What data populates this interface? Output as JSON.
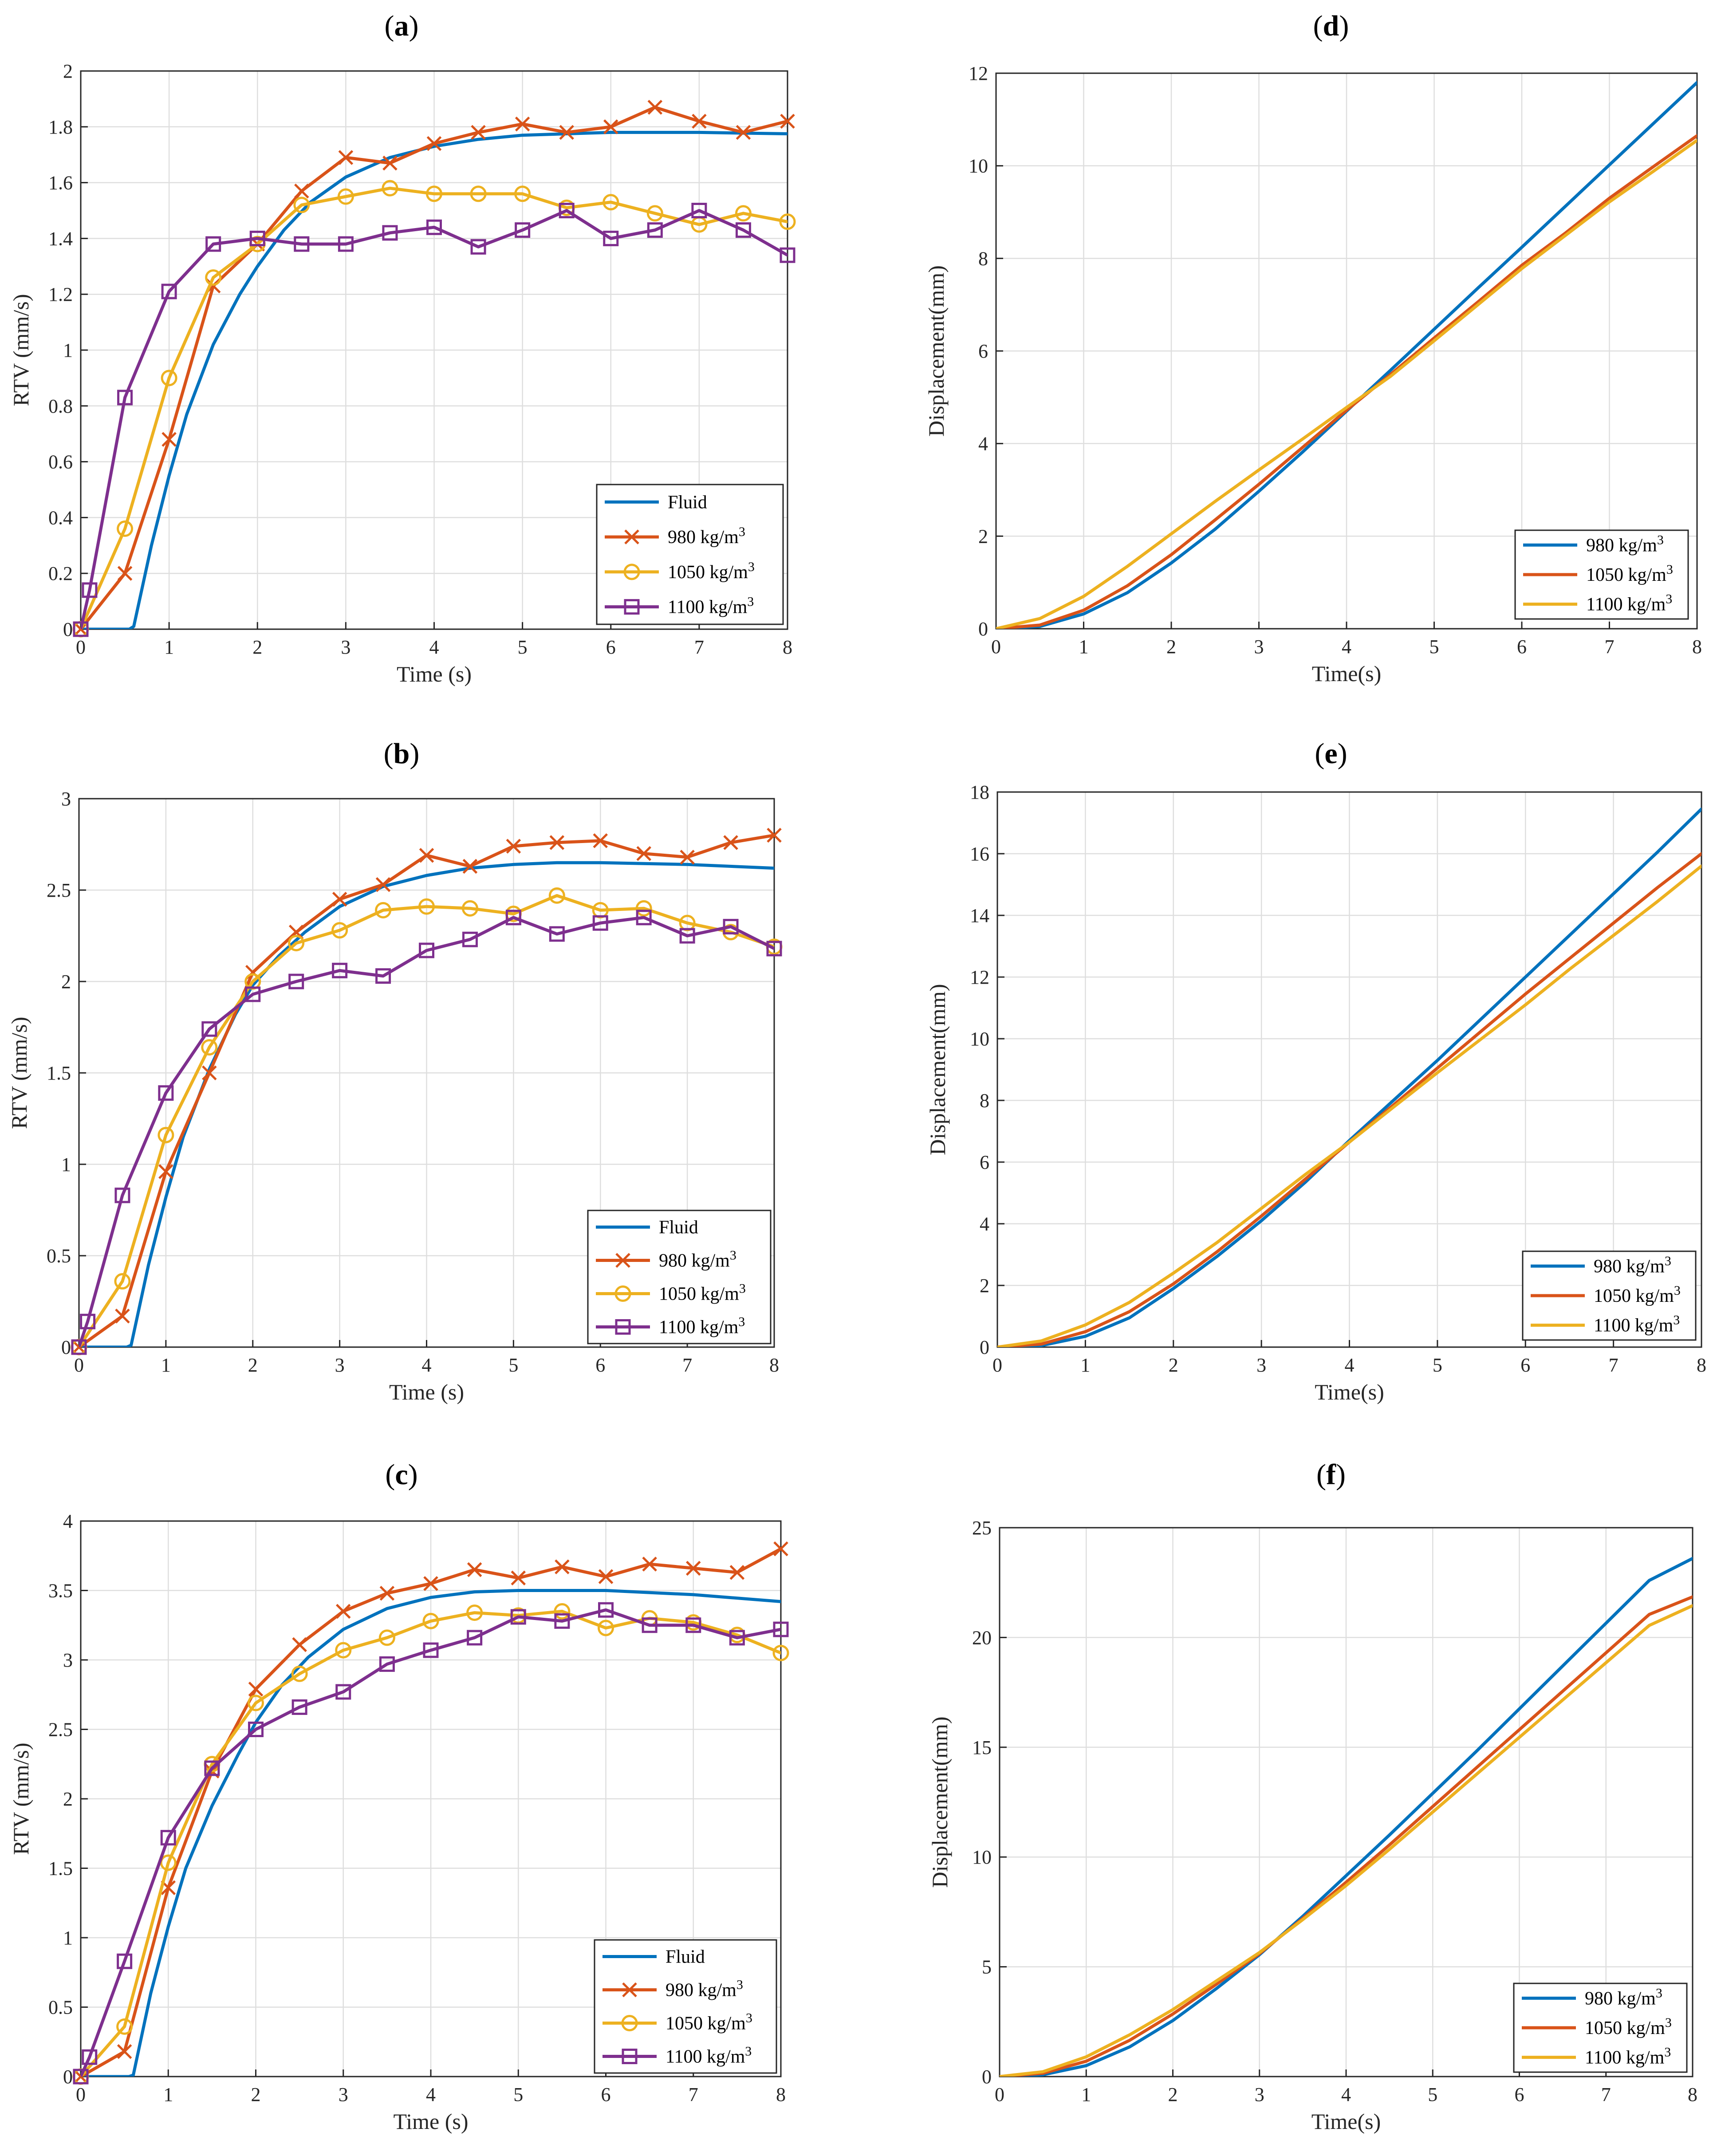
{
  "colors": {
    "fluid": "#0072BD",
    "d980": "#D95319",
    "d1050": "#EDB120",
    "d1100": "#7E2F8E",
    "disp980": "#0072BD",
    "disp1050": "#D95319",
    "disp1100": "#EDB120"
  },
  "chart_data": [
    {
      "id": "a",
      "panel_label": "a",
      "type": "line",
      "title": "",
      "xlabel": "Time (s)",
      "ylabel": "RTV (mm/s)",
      "xlim": [
        0,
        8
      ],
      "ylim": [
        0,
        2
      ],
      "xticks": [
        0,
        1,
        2,
        3,
        4,
        5,
        6,
        7,
        8
      ],
      "yticks": [
        0,
        0.2,
        0.4,
        0.6,
        0.8,
        1,
        1.2,
        1.4,
        1.6,
        1.8,
        2
      ],
      "grid": true,
      "legend_position": "bottom-right",
      "series": [
        {
          "name": "Fluid",
          "color_key": "fluid",
          "marker": "none",
          "x": [
            0,
            0.3,
            0.55,
            0.6,
            0.8,
            1.0,
            1.2,
            1.5,
            1.8,
            2.0,
            2.3,
            2.6,
            3.0,
            3.5,
            4.0,
            4.5,
            5.0,
            5.5,
            6.0,
            7.0,
            8.0
          ],
          "y": [
            0,
            0,
            0,
            0.01,
            0.3,
            0.55,
            0.77,
            1.02,
            1.2,
            1.3,
            1.43,
            1.53,
            1.62,
            1.69,
            1.73,
            1.755,
            1.77,
            1.775,
            1.78,
            1.78,
            1.775
          ]
        },
        {
          "name": "980 kg/m3",
          "color_key": "d980",
          "marker": "x",
          "x": [
            0,
            0.5,
            1,
            1.5,
            2,
            2.5,
            3,
            3.5,
            4,
            4.5,
            5,
            5.5,
            6,
            6.5,
            7,
            7.5,
            8
          ],
          "y": [
            0,
            0.2,
            0.68,
            1.23,
            1.38,
            1.57,
            1.69,
            1.67,
            1.74,
            1.78,
            1.81,
            1.78,
            1.8,
            1.87,
            1.82,
            1.78,
            1.82
          ]
        },
        {
          "name": "1050 kg/m3",
          "color_key": "d1050",
          "marker": "o",
          "x": [
            0,
            0.5,
            1,
            1.5,
            2,
            2.5,
            3,
            3.5,
            4,
            4.5,
            5,
            5.5,
            6,
            6.5,
            7,
            7.5,
            8
          ],
          "y": [
            0,
            0.36,
            0.9,
            1.26,
            1.38,
            1.52,
            1.55,
            1.58,
            1.56,
            1.56,
            1.56,
            1.51,
            1.53,
            1.49,
            1.45,
            1.49,
            1.46
          ]
        },
        {
          "name": "1100 kg/m3",
          "color_key": "d1100",
          "marker": "s",
          "x": [
            0,
            0.1,
            0.5,
            1,
            1.5,
            2,
            2.5,
            3,
            3.5,
            4,
            4.5,
            5,
            5.5,
            6,
            6.5,
            7,
            7.5,
            8
          ],
          "y": [
            0,
            0.14,
            0.83,
            1.21,
            1.38,
            1.4,
            1.38,
            1.38,
            1.42,
            1.44,
            1.37,
            1.43,
            1.5,
            1.4,
            1.43,
            1.5,
            1.43,
            1.34
          ]
        }
      ]
    },
    {
      "id": "b",
      "panel_label": "b",
      "type": "line",
      "title": "",
      "xlabel": "Time (s)",
      "ylabel": "RTV (mm/s)",
      "xlim": [
        0,
        8
      ],
      "ylim": [
        0,
        3
      ],
      "xticks": [
        0,
        1,
        2,
        3,
        4,
        5,
        6,
        7,
        8
      ],
      "yticks": [
        0,
        0.5,
        1,
        1.5,
        2,
        2.5,
        3
      ],
      "grid": true,
      "legend_position": "bottom-right",
      "series": [
        {
          "name": "Fluid",
          "color_key": "fluid",
          "marker": "none",
          "x": [
            0,
            0.3,
            0.55,
            0.6,
            0.8,
            1.0,
            1.2,
            1.5,
            1.8,
            2.0,
            2.3,
            2.6,
            3.0,
            3.5,
            4.0,
            4.5,
            5.0,
            5.5,
            6.0,
            7.0,
            8.0
          ],
          "y": [
            0,
            0,
            0,
            0.01,
            0.45,
            0.82,
            1.15,
            1.52,
            1.82,
            1.98,
            2.14,
            2.27,
            2.41,
            2.52,
            2.58,
            2.62,
            2.64,
            2.65,
            2.65,
            2.64,
            2.62
          ]
        },
        {
          "name": "980 kg/m3",
          "color_key": "d980",
          "marker": "x",
          "x": [
            0,
            0.5,
            1,
            1.5,
            2,
            2.5,
            3,
            3.5,
            4,
            4.5,
            5,
            5.5,
            6,
            6.5,
            7,
            7.5,
            8
          ],
          "y": [
            0,
            0.17,
            0.96,
            1.5,
            2.05,
            2.27,
            2.45,
            2.53,
            2.69,
            2.63,
            2.74,
            2.76,
            2.77,
            2.7,
            2.68,
            2.76,
            2.8
          ]
        },
        {
          "name": "1050 kg/m3",
          "color_key": "d1050",
          "marker": "o",
          "x": [
            0,
            0.5,
            1,
            1.5,
            2,
            2.5,
            3,
            3.5,
            4,
            4.5,
            5,
            5.5,
            6,
            6.5,
            7,
            7.5,
            8
          ],
          "y": [
            0,
            0.36,
            1.16,
            1.64,
            2.0,
            2.21,
            2.28,
            2.39,
            2.41,
            2.4,
            2.37,
            2.47,
            2.39,
            2.4,
            2.32,
            2.27,
            2.19
          ]
        },
        {
          "name": "1100 kg/m3",
          "color_key": "d1100",
          "marker": "s",
          "x": [
            0,
            0.1,
            0.5,
            1,
            1.5,
            2,
            2.5,
            3,
            3.5,
            4,
            4.5,
            5,
            5.5,
            6,
            6.5,
            7,
            7.5,
            8
          ],
          "y": [
            0,
            0.14,
            0.83,
            1.39,
            1.74,
            1.93,
            2.0,
            2.06,
            2.03,
            2.17,
            2.23,
            2.35,
            2.26,
            2.32,
            2.35,
            2.25,
            2.3,
            2.18
          ]
        }
      ]
    },
    {
      "id": "c",
      "panel_label": "c",
      "type": "line",
      "title": "",
      "xlabel": "Time (s)",
      "ylabel": "RTV (mm/s)",
      "xlim": [
        0,
        8
      ],
      "ylim": [
        0,
        4
      ],
      "xticks": [
        0,
        1,
        2,
        3,
        4,
        5,
        6,
        7,
        8
      ],
      "yticks": [
        0,
        0.5,
        1,
        1.5,
        2,
        2.5,
        3,
        3.5,
        4
      ],
      "grid": true,
      "legend_position": "bottom-right",
      "series": [
        {
          "name": "Fluid",
          "color_key": "fluid",
          "marker": "none",
          "x": [
            0,
            0.3,
            0.55,
            0.6,
            0.8,
            1.0,
            1.2,
            1.5,
            1.8,
            2.0,
            2.3,
            2.6,
            3.0,
            3.5,
            4.0,
            4.5,
            5.0,
            5.5,
            6.0,
            7.0,
            8.0
          ],
          "y": [
            0,
            0,
            0,
            0.01,
            0.6,
            1.08,
            1.5,
            1.95,
            2.32,
            2.55,
            2.82,
            3.02,
            3.22,
            3.37,
            3.45,
            3.49,
            3.5,
            3.5,
            3.5,
            3.47,
            3.42
          ]
        },
        {
          "name": "980 kg/m3",
          "color_key": "d980",
          "marker": "x",
          "x": [
            0,
            0.5,
            1,
            1.5,
            2,
            2.5,
            3,
            3.5,
            4,
            4.5,
            5,
            5.5,
            6,
            6.5,
            7,
            7.5,
            8
          ],
          "y": [
            0,
            0.18,
            1.36,
            2.2,
            2.79,
            3.11,
            3.35,
            3.48,
            3.55,
            3.65,
            3.59,
            3.67,
            3.6,
            3.69,
            3.66,
            3.63,
            3.8
          ]
        },
        {
          "name": "1050 kg/m3",
          "color_key": "d1050",
          "marker": "o",
          "x": [
            0,
            0.5,
            1,
            1.5,
            2,
            2.5,
            3,
            3.5,
            4,
            4.5,
            5,
            5.5,
            6,
            6.5,
            7,
            7.5,
            8
          ],
          "y": [
            0,
            0.36,
            1.54,
            2.25,
            2.69,
            2.9,
            3.07,
            3.16,
            3.28,
            3.34,
            3.32,
            3.35,
            3.23,
            3.3,
            3.27,
            3.18,
            3.05
          ]
        },
        {
          "name": "1100 kg/m3",
          "color_key": "d1100",
          "marker": "s",
          "x": [
            0,
            0.1,
            0.5,
            1,
            1.5,
            2,
            2.5,
            3,
            3.5,
            4,
            4.5,
            5,
            5.5,
            6,
            6.5,
            7,
            7.5,
            8
          ],
          "y": [
            0,
            0.14,
            0.83,
            1.72,
            2.22,
            2.5,
            2.66,
            2.77,
            2.97,
            3.07,
            3.16,
            3.31,
            3.28,
            3.36,
            3.25,
            3.25,
            3.16,
            3.22
          ]
        }
      ]
    },
    {
      "id": "d",
      "panel_label": "d",
      "type": "line",
      "title": "",
      "xlabel": "Time(s)",
      "ylabel": "Displacement(mm)",
      "xlim": [
        0,
        8
      ],
      "ylim": [
        0,
        12
      ],
      "xticks": [
        0,
        1,
        2,
        3,
        4,
        5,
        6,
        7,
        8
      ],
      "yticks": [
        0,
        2,
        4,
        6,
        8,
        10,
        12
      ],
      "grid": true,
      "legend_position": "bottom-right",
      "series": [
        {
          "name": "980 kg/m3",
          "color_key": "disp980",
          "marker": "none",
          "x": [
            0,
            0.5,
            1,
            1.5,
            2,
            2.5,
            3,
            3.5,
            4,
            4.5,
            5,
            5.5,
            6,
            6.5,
            7,
            7.5,
            8
          ],
          "y": [
            0,
            0.05,
            0.32,
            0.78,
            1.42,
            2.15,
            2.97,
            3.82,
            4.7,
            5.58,
            6.47,
            7.36,
            8.24,
            9.13,
            10.02,
            10.91,
            11.8
          ]
        },
        {
          "name": "1050 kg/m3",
          "color_key": "disp1050",
          "marker": "none",
          "x": [
            0,
            0.5,
            1,
            1.5,
            2,
            2.5,
            3,
            3.5,
            4,
            4.5,
            5,
            5.5,
            6,
            6.5,
            7,
            7.5,
            8
          ],
          "y": [
            0,
            0.08,
            0.4,
            0.93,
            1.6,
            2.35,
            3.12,
            3.92,
            4.72,
            5.49,
            6.28,
            7.06,
            7.85,
            8.55,
            9.3,
            9.98,
            10.65
          ]
        },
        {
          "name": "1100 kg/m3",
          "color_key": "disp1100",
          "marker": "none",
          "x": [
            0,
            0.5,
            1,
            1.5,
            2,
            2.5,
            3,
            3.5,
            4,
            4.5,
            5,
            5.5,
            6,
            6.5,
            7,
            7.5,
            8
          ],
          "y": [
            0,
            0.22,
            0.7,
            1.35,
            2.05,
            2.75,
            3.43,
            4.1,
            4.78,
            5.45,
            6.22,
            7.0,
            7.78,
            8.5,
            9.22,
            9.88,
            10.55
          ]
        }
      ]
    },
    {
      "id": "e",
      "panel_label": "e",
      "type": "line",
      "title": "",
      "xlabel": "Time(s)",
      "ylabel": "Displacement(mm)",
      "xlim": [
        0,
        8
      ],
      "ylim": [
        0,
        18
      ],
      "xticks": [
        0,
        1,
        2,
        3,
        4,
        5,
        6,
        7,
        8
      ],
      "yticks": [
        0,
        2,
        4,
        6,
        8,
        10,
        12,
        14,
        16,
        18
      ],
      "grid": true,
      "legend_position": "bottom-right",
      "series": [
        {
          "name": "980 kg/m3",
          "color_key": "disp980",
          "marker": "none",
          "x": [
            0,
            0.5,
            1,
            1.5,
            2,
            2.5,
            3,
            3.5,
            4,
            4.5,
            5,
            5.5,
            6,
            6.5,
            7,
            7.5,
            8
          ],
          "y": [
            0,
            0.05,
            0.35,
            0.95,
            1.9,
            2.95,
            4.1,
            5.35,
            6.7,
            8.0,
            9.3,
            10.65,
            12.0,
            13.35,
            14.7,
            16.05,
            17.45
          ]
        },
        {
          "name": "1050 kg/m3",
          "color_key": "disp1050",
          "marker": "none",
          "x": [
            0,
            0.5,
            1,
            1.5,
            2,
            2.5,
            3,
            3.5,
            4,
            4.5,
            5,
            5.5,
            6,
            6.5,
            7,
            7.5,
            8
          ],
          "y": [
            0,
            0.1,
            0.5,
            1.15,
            2.05,
            3.1,
            4.25,
            5.45,
            6.65,
            7.85,
            9.05,
            10.25,
            11.45,
            12.6,
            13.75,
            14.9,
            16.0
          ]
        },
        {
          "name": "1100 kg/m3",
          "color_key": "disp1100",
          "marker": "none",
          "x": [
            0,
            0.5,
            1,
            1.5,
            2,
            2.5,
            3,
            3.5,
            4,
            4.5,
            5,
            5.5,
            6,
            6.5,
            7,
            7.5,
            8
          ],
          "y": [
            0,
            0.2,
            0.72,
            1.45,
            2.4,
            3.4,
            4.5,
            5.6,
            6.65,
            7.78,
            8.9,
            10.0,
            11.1,
            12.25,
            13.35,
            14.45,
            15.6
          ]
        }
      ]
    },
    {
      "id": "f",
      "panel_label": "f",
      "type": "line",
      "title": "",
      "xlabel": "Time(s)",
      "ylabel": "Displacement(mm)",
      "xlim": [
        0,
        8
      ],
      "ylim": [
        0,
        25
      ],
      "xticks": [
        0,
        1,
        2,
        3,
        4,
        5,
        6,
        7,
        8
      ],
      "yticks": [
        0,
        5,
        10,
        15,
        20,
        25
      ],
      "grid": true,
      "legend_position": "bottom-right",
      "series": [
        {
          "name": "980 kg/m3",
          "color_key": "disp980",
          "marker": "none",
          "x": [
            0,
            0.5,
            1,
            1.5,
            2,
            2.5,
            3,
            3.5,
            4,
            4.5,
            5,
            5.5,
            6,
            6.5,
            7,
            7.5,
            8
          ],
          "y": [
            0,
            0.08,
            0.5,
            1.35,
            2.55,
            4.0,
            5.55,
            7.3,
            9.15,
            11.0,
            12.9,
            14.8,
            16.75,
            18.7,
            20.65,
            22.6,
            23.6
          ]
        },
        {
          "name": "1050 kg/m3",
          "color_key": "disp1050",
          "marker": "none",
          "x": [
            0,
            0.5,
            1,
            1.5,
            2,
            2.5,
            3,
            3.5,
            4,
            4.5,
            5,
            5.5,
            6,
            6.5,
            7,
            7.5,
            8
          ],
          "y": [
            0,
            0.15,
            0.7,
            1.65,
            2.85,
            4.2,
            5.6,
            7.2,
            8.85,
            10.55,
            12.3,
            14.05,
            15.8,
            17.55,
            19.3,
            21.05,
            21.85
          ]
        },
        {
          "name": "1100 kg/m3",
          "color_key": "disp1100",
          "marker": "none",
          "x": [
            0,
            0.5,
            1,
            1.5,
            2,
            2.5,
            3,
            3.5,
            4,
            4.5,
            5,
            5.5,
            6,
            6.5,
            7,
            7.5,
            8
          ],
          "y": [
            0,
            0.22,
            0.9,
            1.9,
            3.05,
            4.35,
            5.65,
            7.15,
            8.7,
            10.35,
            12.05,
            13.75,
            15.45,
            17.15,
            18.85,
            20.55,
            21.45
          ]
        }
      ]
    }
  ]
}
